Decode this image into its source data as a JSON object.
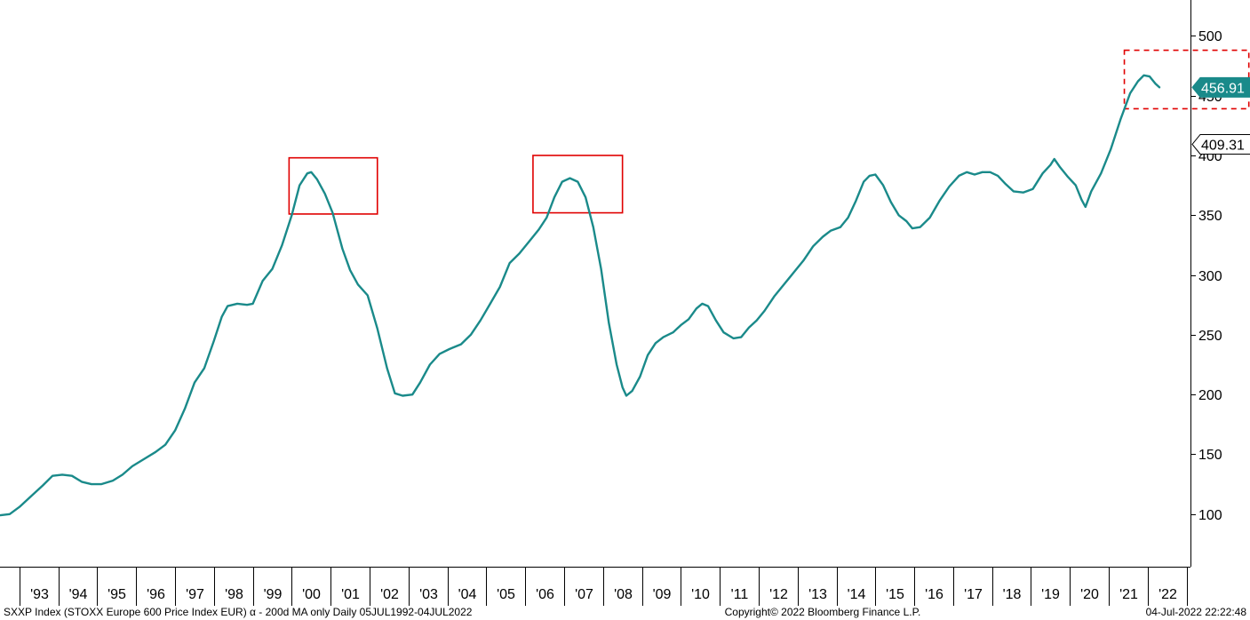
{
  "chart_data": {
    "type": "line",
    "x_labels": [
      "'93",
      "'94",
      "'95",
      "'96",
      "'97",
      "'98",
      "'99",
      "'00",
      "'01",
      "'02",
      "'03",
      "'04",
      "'05",
      "'06",
      "'07",
      "'08",
      "'09",
      "'10",
      "'11",
      "'12",
      "'13",
      "'14",
      "'15",
      "'16",
      "'17",
      "'18",
      "'19",
      "'20",
      "'21",
      "'22"
    ],
    "y_ticks": [
      100,
      150,
      200,
      250,
      300,
      350,
      400,
      450,
      500
    ],
    "ylim": [
      56,
      530
    ],
    "xlim": [
      1992.5,
      2023.1
    ],
    "grid": false,
    "series": [
      {
        "color": "#1a8a8a",
        "points": [
          [
            1992.51,
            99
          ],
          [
            1992.75,
            100
          ],
          [
            1993.0,
            106
          ],
          [
            1993.3,
            115
          ],
          [
            1993.6,
            124
          ],
          [
            1993.85,
            132
          ],
          [
            1994.1,
            133
          ],
          [
            1994.35,
            132
          ],
          [
            1994.6,
            127
          ],
          [
            1994.85,
            125
          ],
          [
            1995.1,
            125
          ],
          [
            1995.4,
            128
          ],
          [
            1995.65,
            133
          ],
          [
            1995.9,
            140
          ],
          [
            1996.2,
            146
          ],
          [
            1996.5,
            152
          ],
          [
            1996.75,
            158
          ],
          [
            1997.0,
            170
          ],
          [
            1997.25,
            188
          ],
          [
            1997.5,
            210
          ],
          [
            1997.75,
            222
          ],
          [
            1998.0,
            245
          ],
          [
            1998.2,
            265
          ],
          [
            1998.35,
            274
          ],
          [
            1998.6,
            276
          ],
          [
            1998.85,
            275
          ],
          [
            1999.0,
            276
          ],
          [
            1999.25,
            295
          ],
          [
            1999.5,
            305
          ],
          [
            1999.75,
            325
          ],
          [
            2000.0,
            350
          ],
          [
            2000.2,
            375
          ],
          [
            2000.4,
            385
          ],
          [
            2000.5,
            386
          ],
          [
            2000.65,
            380
          ],
          [
            2000.85,
            368
          ],
          [
            2001.05,
            352
          ],
          [
            2001.3,
            322
          ],
          [
            2001.5,
            304
          ],
          [
            2001.7,
            292
          ],
          [
            2001.95,
            283
          ],
          [
            2002.2,
            255
          ],
          [
            2002.45,
            222
          ],
          [
            2002.65,
            201
          ],
          [
            2002.85,
            199
          ],
          [
            2003.1,
            200
          ],
          [
            2003.3,
            210
          ],
          [
            2003.55,
            225
          ],
          [
            2003.8,
            234
          ],
          [
            2004.05,
            238
          ],
          [
            2004.35,
            242
          ],
          [
            2004.6,
            250
          ],
          [
            2004.85,
            262
          ],
          [
            2005.1,
            276
          ],
          [
            2005.35,
            290
          ],
          [
            2005.6,
            310
          ],
          [
            2005.85,
            318
          ],
          [
            2006.1,
            328
          ],
          [
            2006.35,
            338
          ],
          [
            2006.55,
            348
          ],
          [
            2006.75,
            365
          ],
          [
            2006.95,
            378
          ],
          [
            2007.15,
            381
          ],
          [
            2007.35,
            378
          ],
          [
            2007.55,
            365
          ],
          [
            2007.75,
            340
          ],
          [
            2007.95,
            305
          ],
          [
            2008.15,
            260
          ],
          [
            2008.35,
            225
          ],
          [
            2008.5,
            206
          ],
          [
            2008.6,
            199
          ],
          [
            2008.75,
            203
          ],
          [
            2008.95,
            215
          ],
          [
            2009.15,
            233
          ],
          [
            2009.35,
            243
          ],
          [
            2009.55,
            248
          ],
          [
            2009.8,
            252
          ],
          [
            2010.0,
            258
          ],
          [
            2010.2,
            263
          ],
          [
            2010.4,
            272
          ],
          [
            2010.55,
            276
          ],
          [
            2010.7,
            274
          ],
          [
            2010.9,
            262
          ],
          [
            2011.1,
            252
          ],
          [
            2011.35,
            247
          ],
          [
            2011.55,
            248
          ],
          [
            2011.75,
            256
          ],
          [
            2011.95,
            262
          ],
          [
            2012.15,
            270
          ],
          [
            2012.4,
            282
          ],
          [
            2012.65,
            292
          ],
          [
            2012.9,
            302
          ],
          [
            2013.15,
            312
          ],
          [
            2013.4,
            324
          ],
          [
            2013.65,
            332
          ],
          [
            2013.85,
            337
          ],
          [
            2014.1,
            340
          ],
          [
            2014.3,
            348
          ],
          [
            2014.5,
            362
          ],
          [
            2014.7,
            378
          ],
          [
            2014.85,
            383
          ],
          [
            2015.0,
            384
          ],
          [
            2015.2,
            375
          ],
          [
            2015.4,
            361
          ],
          [
            2015.6,
            350
          ],
          [
            2015.8,
            345
          ],
          [
            2015.95,
            339
          ],
          [
            2016.15,
            340
          ],
          [
            2016.4,
            348
          ],
          [
            2016.65,
            362
          ],
          [
            2016.9,
            374
          ],
          [
            2017.15,
            383
          ],
          [
            2017.35,
            386
          ],
          [
            2017.55,
            384
          ],
          [
            2017.75,
            386
          ],
          [
            2017.95,
            386
          ],
          [
            2018.15,
            383
          ],
          [
            2018.35,
            376
          ],
          [
            2018.55,
            370
          ],
          [
            2018.8,
            369
          ],
          [
            2019.05,
            372
          ],
          [
            2019.3,
            385
          ],
          [
            2019.5,
            392
          ],
          [
            2019.6,
            397
          ],
          [
            2019.75,
            390
          ],
          [
            2019.95,
            382
          ],
          [
            2020.15,
            375
          ],
          [
            2020.3,
            363
          ],
          [
            2020.4,
            357
          ],
          [
            2020.55,
            370
          ],
          [
            2020.8,
            385
          ],
          [
            2021.05,
            405
          ],
          [
            2021.3,
            430
          ],
          [
            2021.55,
            452
          ],
          [
            2021.75,
            462
          ],
          [
            2021.9,
            467
          ],
          [
            2022.05,
            466
          ],
          [
            2022.2,
            460
          ],
          [
            2022.3,
            457
          ]
        ]
      }
    ],
    "labels": [
      {
        "value": 456.91,
        "text": "456.91",
        "style": "filled",
        "color": "#1a8a8a"
      },
      {
        "value": 409.31,
        "text": "409.31",
        "style": "outline",
        "color": "#000000"
      }
    ],
    "annotations": [
      {
        "kind": "box-solid",
        "x0": 1999.93,
        "x1": 2002.2,
        "y0": 351,
        "y1": 398,
        "color": "#e00000"
      },
      {
        "kind": "box-solid",
        "x0": 2006.2,
        "x1": 2008.5,
        "y0": 352,
        "y1": 400,
        "color": "#e00000"
      },
      {
        "kind": "box-dashed",
        "x0": 2021.4,
        "x1": 2024.6,
        "y0": 439,
        "y1": 488,
        "color": "#e00000"
      }
    ]
  },
  "footer": {
    "description": "SXXP Index (STOXX Europe 600 Price Index EUR) α - 200d MA only  Daily 05JUL1992-04JUL2022",
    "copyright": "Copyright© 2022 Bloomberg Finance L.P.",
    "timestamp": "04-Jul-2022 22:22:48"
  }
}
